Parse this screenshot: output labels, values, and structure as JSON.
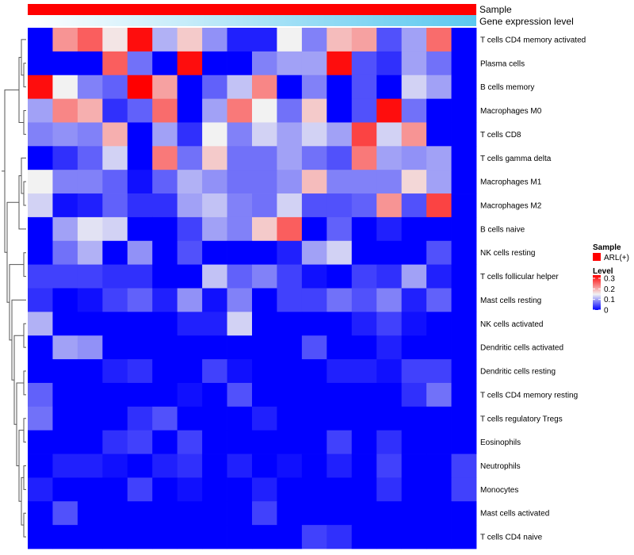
{
  "chart_data": {
    "type": "heatmap",
    "title": "",
    "annotations": [
      {
        "name": "Sample",
        "color": "#ff0000"
      },
      {
        "name": "Gene expression level",
        "gradient": [
          "#ffffff",
          "#5bc8ef"
        ]
      }
    ],
    "rows": [
      "T cells CD4 memory activated",
      "Plasma cells",
      "B cells memory",
      "Macrophages M0",
      "T cells CD8",
      "T cells gamma delta",
      "Macrophages M1",
      "Macrophages M2",
      "B cells naive",
      "NK cells resting",
      "T cells follicular helper",
      "Mast cells resting",
      "NK cells activated",
      "Dendritic cells activated",
      "Dendritic cells resting",
      "T cells CD4 memory resting",
      "T cells regulatory  Tregs",
      "Eosinophils",
      "Neutrophils",
      "Monocytes",
      "Mast cells activated",
      "T cells CD4 naive"
    ],
    "n_columns": 18,
    "values": [
      [
        0.0,
        0.22,
        0.26,
        0.16,
        0.32,
        0.11,
        0.18,
        0.09,
        0.02,
        0.02,
        0.15,
        0.08,
        0.19,
        0.21,
        0.05,
        0.1,
        0.25,
        0.0
      ],
      [
        0.0,
        0.0,
        0.0,
        0.26,
        0.07,
        0.0,
        0.32,
        0.0,
        0.0,
        0.08,
        0.1,
        0.1,
        0.32,
        0.05,
        0.03,
        0.1,
        0.07,
        0.0
      ],
      [
        0.32,
        0.15,
        0.08,
        0.06,
        0.33,
        0.21,
        0.0,
        0.06,
        0.12,
        0.23,
        0.0,
        0.08,
        0.0,
        0.05,
        0.0,
        0.13,
        0.1,
        0.0
      ],
      [
        0.1,
        0.23,
        0.2,
        0.03,
        0.06,
        0.25,
        0.0,
        0.1,
        0.24,
        0.15,
        0.07,
        0.18,
        0.0,
        0.05,
        0.32,
        0.07,
        0.0,
        0.0
      ],
      [
        0.08,
        0.09,
        0.08,
        0.2,
        0.0,
        0.1,
        0.03,
        0.15,
        0.08,
        0.13,
        0.1,
        0.13,
        0.1,
        0.28,
        0.13,
        0.22,
        0.0,
        0.0
      ],
      [
        0.0,
        0.03,
        0.06,
        0.13,
        0.0,
        0.24,
        0.07,
        0.18,
        0.07,
        0.07,
        0.1,
        0.07,
        0.05,
        0.24,
        0.1,
        0.09,
        0.1,
        0.0
      ],
      [
        0.15,
        0.08,
        0.08,
        0.06,
        0.01,
        0.06,
        0.11,
        0.09,
        0.07,
        0.07,
        0.09,
        0.19,
        0.08,
        0.08,
        0.08,
        0.17,
        0.1,
        0.0
      ],
      [
        0.13,
        0.01,
        0.02,
        0.06,
        0.03,
        0.03,
        0.1,
        0.12,
        0.08,
        0.07,
        0.13,
        0.05,
        0.05,
        0.06,
        0.22,
        0.05,
        0.28,
        0.0
      ],
      [
        0.0,
        0.1,
        0.14,
        0.13,
        0.0,
        0.0,
        0.04,
        0.1,
        0.08,
        0.18,
        0.26,
        0.0,
        0.06,
        0.0,
        0.02,
        0.0,
        0.0,
        0.0
      ],
      [
        0.0,
        0.07,
        0.11,
        0.0,
        0.09,
        0.0,
        0.05,
        0.0,
        0.0,
        0.0,
        0.02,
        0.1,
        0.13,
        0.0,
        0.0,
        0.0,
        0.05,
        0.0
      ],
      [
        0.04,
        0.04,
        0.04,
        0.03,
        0.03,
        0.0,
        0.0,
        0.12,
        0.06,
        0.08,
        0.04,
        0.01,
        0.0,
        0.04,
        0.03,
        0.1,
        0.02,
        0.0
      ],
      [
        0.03,
        0.0,
        0.01,
        0.04,
        0.06,
        0.02,
        0.09,
        0.01,
        0.08,
        0.0,
        0.04,
        0.04,
        0.07,
        0.05,
        0.08,
        0.02,
        0.06,
        0.0
      ],
      [
        0.11,
        0.0,
        0.0,
        0.0,
        0.0,
        0.0,
        0.02,
        0.02,
        0.13,
        0.0,
        0.0,
        0.0,
        0.0,
        0.02,
        0.04,
        0.01,
        0.0,
        0.0
      ],
      [
        0.0,
        0.1,
        0.09,
        0.0,
        0.0,
        0.0,
        0.0,
        0.0,
        0.0,
        0.0,
        0.0,
        0.05,
        0.0,
        0.0,
        0.02,
        0.0,
        0.0,
        0.0
      ],
      [
        0.0,
        0.0,
        0.0,
        0.02,
        0.03,
        0.0,
        0.0,
        0.04,
        0.01,
        0.0,
        0.0,
        0.0,
        0.02,
        0.02,
        0.01,
        0.04,
        0.04,
        0.0
      ],
      [
        0.06,
        0.0,
        0.0,
        0.0,
        0.0,
        0.0,
        0.01,
        0.0,
        0.05,
        0.0,
        0.0,
        0.0,
        0.0,
        0.0,
        0.0,
        0.03,
        0.07,
        0.0
      ],
      [
        0.07,
        0.0,
        0.0,
        0.0,
        0.03,
        0.05,
        0.0,
        0.0,
        0.0,
        0.02,
        0.0,
        0.0,
        0.0,
        0.0,
        0.0,
        0.0,
        0.0,
        0.0
      ],
      [
        0.0,
        0.0,
        0.0,
        0.03,
        0.04,
        0.0,
        0.04,
        0.0,
        0.0,
        0.0,
        0.0,
        0.0,
        0.04,
        0.0,
        0.03,
        0.0,
        0.0,
        0.0
      ],
      [
        0.0,
        0.02,
        0.02,
        0.01,
        0.0,
        0.02,
        0.03,
        0.0,
        0.02,
        0.0,
        0.01,
        0.0,
        0.02,
        0.0,
        0.04,
        0.0,
        0.0,
        0.04
      ],
      [
        0.02,
        0.0,
        0.0,
        0.0,
        0.04,
        0.0,
        0.01,
        0.0,
        0.0,
        0.02,
        0.0,
        0.0,
        0.0,
        0.0,
        0.03,
        0.0,
        0.0,
        0.04
      ],
      [
        0.0,
        0.05,
        0.0,
        0.0,
        0.0,
        0.0,
        0.0,
        0.0,
        0.0,
        0.04,
        0.0,
        0.0,
        0.0,
        0.0,
        0.0,
        0.0,
        0.0,
        0.0
      ],
      [
        0.0,
        0.0,
        0.0,
        0.0,
        0.0,
        0.0,
        0.0,
        0.0,
        0.0,
        0.0,
        0.0,
        0.04,
        0.03,
        0.0,
        0.0,
        0.0,
        0.0,
        0.0
      ]
    ],
    "color_scale": {
      "min": 0,
      "mid": 0.15,
      "max": 0.33,
      "low": "#0000ff",
      "midcolor": "#f2f2f2",
      "high": "#ff0000"
    },
    "legend": {
      "sample_title": "Sample",
      "sample_label": "ARL(+)",
      "level_title": "Level",
      "ticks": [
        0.3,
        0.2,
        0.1,
        0
      ],
      "tick_labels": [
        "0.3",
        "0.2",
        "0.1",
        "0"
      ],
      "placement": "right"
    },
    "row_dendrogram": true
  }
}
